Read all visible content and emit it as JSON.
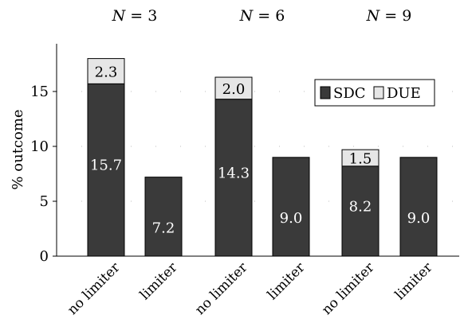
{
  "chart_data": {
    "type": "bar",
    "stacked": true,
    "title": "",
    "xlabel": "",
    "ylabel": "% outcome",
    "ylim": [
      0,
      18.5
    ],
    "yticks": [
      0,
      5,
      10,
      15
    ],
    "grid": "dotted-horizontal",
    "legend_position": "top-right",
    "groups": [
      {
        "label_var": "N",
        "label_eq": " = 3"
      },
      {
        "label_var": "N",
        "label_eq": " = 6"
      },
      {
        "label_var": "N",
        "label_eq": " = 9"
      }
    ],
    "categories": [
      "no limiter",
      "limiter",
      "no limiter",
      "limiter",
      "no limiter",
      "limiter"
    ],
    "series": [
      {
        "name": "SDC",
        "color": "#3a3a3a",
        "values": [
          15.7,
          7.2,
          14.3,
          9.0,
          8.2,
          9.0
        ],
        "labels": [
          "15.7",
          "7.2",
          "14.3",
          "9.0",
          "8.2",
          "9.0"
        ]
      },
      {
        "name": "DUE",
        "color": "#e6e6e6",
        "values": [
          2.3,
          0,
          2.0,
          0,
          1.5,
          0
        ],
        "labels": [
          "2.3",
          "",
          "2.0",
          "",
          "1.5",
          ""
        ]
      }
    ]
  }
}
